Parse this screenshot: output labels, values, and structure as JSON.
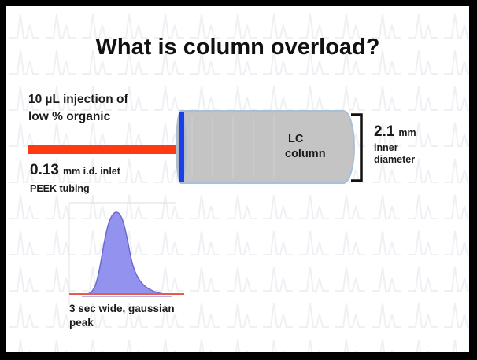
{
  "title": "What is column overload?",
  "injection": {
    "line1": "10 µL injection of",
    "line2": "low % organic"
  },
  "tubing": {
    "value": "0.13",
    "unit_text": "mm i.d. inlet",
    "material": "PEEK tubing"
  },
  "column": {
    "line1": "LC",
    "line2": "column"
  },
  "diameter": {
    "value": "2.1",
    "unit": "mm",
    "line1": "inner",
    "line2": "diameter"
  },
  "peak": {
    "line1": "3 sec wide, gaussian",
    "line2": "peak"
  },
  "colors": {
    "tubing": "#ff3a12",
    "column_body": "#c4c4c4",
    "column_outline": "#a7c0d8",
    "column_frit": "#1a3fe8",
    "peak_fill": "#9393ef",
    "peak_outline": "#6a6ad0",
    "baseline": "#e85a4a",
    "bracket": "#111111"
  }
}
